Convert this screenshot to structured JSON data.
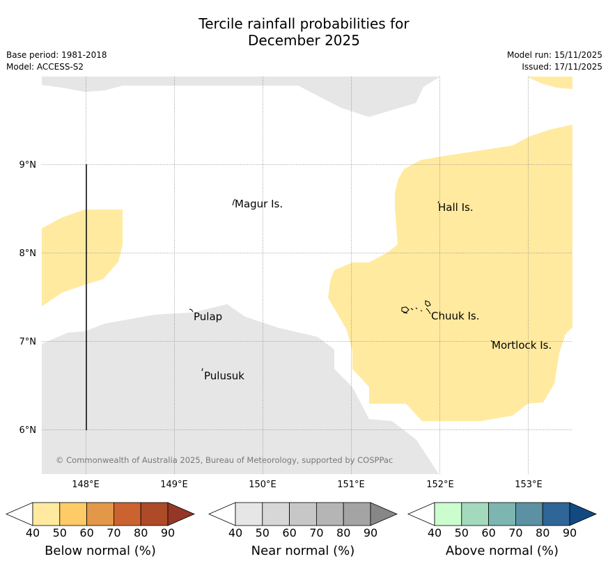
{
  "title_line1": "Tercile rainfall probabilities for",
  "title_line2": "December 2025",
  "base_period": "Base period: 1981-2018",
  "model": "Model: ACCESS-S2",
  "model_run": "Model run: 15/11/2025",
  "issued": "Issued: 17/11/2025",
  "copyright": "© Commonwealth of Australia 2025, Bureau of Meteorology, supported by COSPPac",
  "lon_labels": [
    "148°E",
    "149°E",
    "150°E",
    "151°E",
    "152°E",
    "153°E"
  ],
  "lat_labels": [
    "9°N",
    "8°N",
    "7°N",
    "6°N"
  ],
  "places": {
    "magur": "Magur Is.",
    "hall": "Hall Is.",
    "pulap": "Pulap",
    "chuuk": "Chuuk Is.",
    "mortlock": "Mortlock Is.",
    "pulusuk": "Pulusuk"
  },
  "legend": {
    "ticks": [
      "40",
      "50",
      "60",
      "70",
      "80",
      "90"
    ],
    "below": {
      "label": "Below normal (%)",
      "colors": [
        "#ffeaa0",
        "#fecb66",
        "#e29848",
        "#cb6331",
        "#ad4a27",
        "#943726"
      ]
    },
    "near": {
      "label": "Near normal (%)",
      "colors": [
        "#e6e6e6",
        "#d7d7d7",
        "#c7c7c7",
        "#b5b5b5",
        "#a4a4a4",
        "#878787"
      ]
    },
    "above": {
      "label": "Above normal (%)",
      "colors": [
        "#ccfdce",
        "#a3d9bc",
        "#7db5b0",
        "#5b91a3",
        "#2f6597",
        "#124981"
      ]
    }
  },
  "colors": {
    "near_normal_shade": "#e6e6e6",
    "below_normal_shade": "#ffeaa0",
    "grid": "#888888",
    "copyright_text": "#777777"
  }
}
